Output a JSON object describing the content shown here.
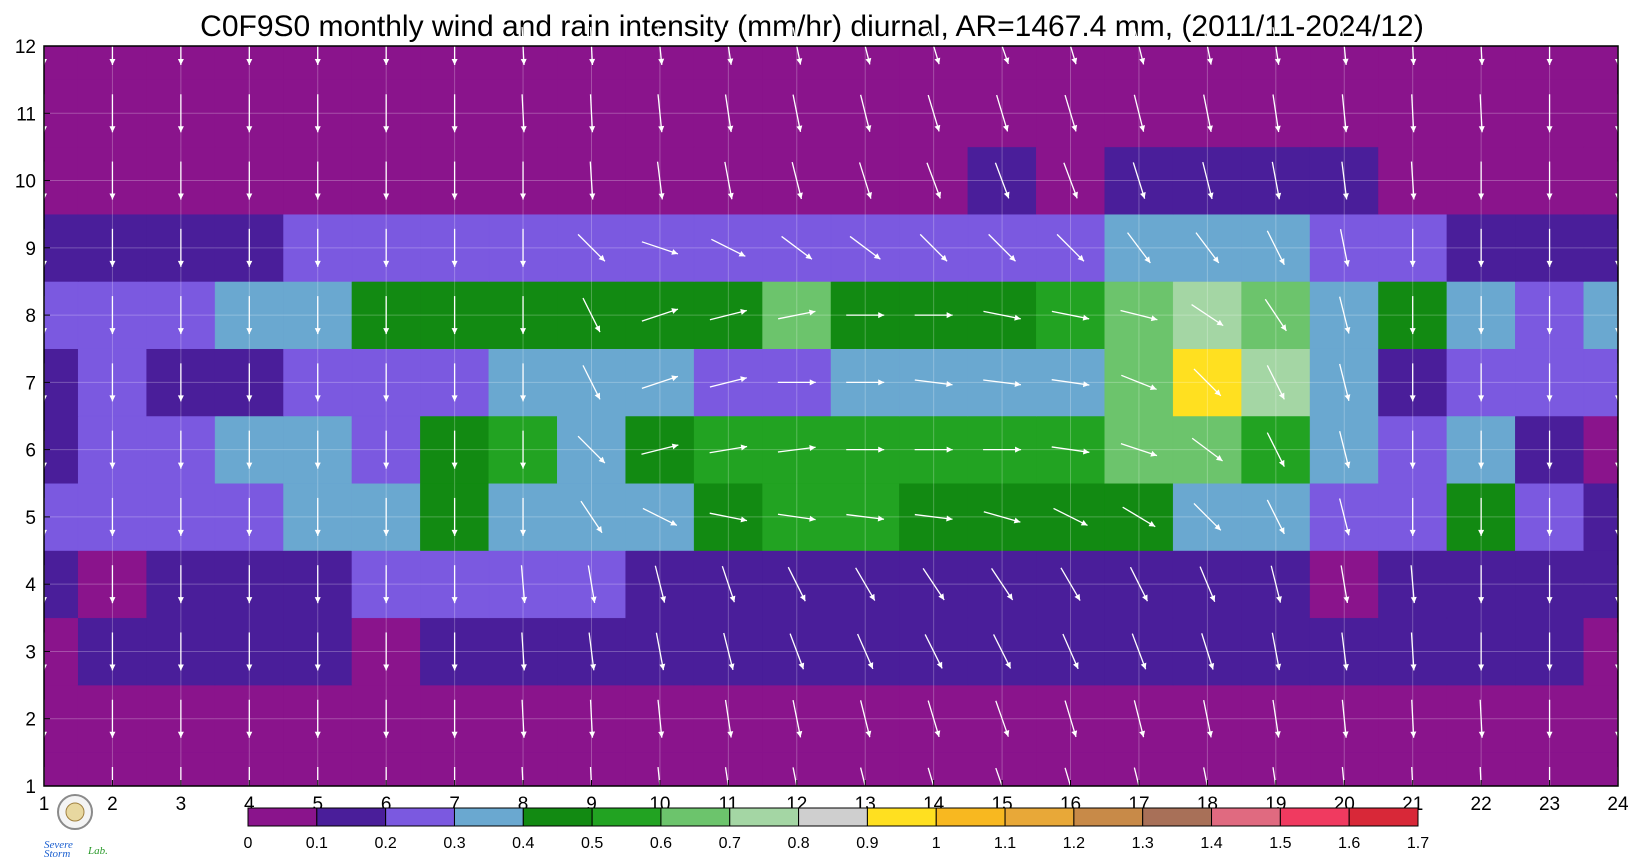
{
  "chart_data": {
    "type": "heatmap",
    "title": "C0F9S0 monthly wind and rain intensity (mm/hr) diurnal, AR=1467.4 mm, (2011/11-2024/12)",
    "xlabel": "",
    "ylabel": "",
    "xlim": [
      1,
      24
    ],
    "ylim": [
      1,
      12
    ],
    "x_ticks": [
      1,
      2,
      3,
      4,
      5,
      6,
      7,
      8,
      9,
      10,
      11,
      12,
      13,
      14,
      15,
      16,
      17,
      18,
      19,
      20,
      21,
      22,
      23,
      24
    ],
    "y_ticks": [
      1,
      2,
      3,
      4,
      5,
      6,
      7,
      8,
      9,
      10,
      11,
      12
    ],
    "grid": true,
    "colorbar": {
      "levels": [
        "0",
        "0.1",
        "0.2",
        "0.3",
        "0.4",
        "0.5",
        "0.6",
        "0.7",
        "0.8",
        "0.9",
        "1",
        "1.1",
        "1.2",
        "1.3",
        "1.4",
        "1.5",
        "1.6",
        "1.7"
      ],
      "colors": [
        "#8a148c",
        "#4a1e9a",
        "#7b59e0",
        "#6aa8d0",
        "#128a12",
        "#22a322",
        "#6cc46c",
        "#a4d6a4",
        "#cfcfcf",
        "#ffe020",
        "#f8b820",
        "#e8a838",
        "#c88a48",
        "#a87058",
        "#e06a80",
        "#f03a60",
        "#d82838"
      ]
    },
    "intensity_rows": [
      {
        "month": 1,
        "values": [
          0,
          0,
          0,
          0,
          0,
          0,
          0,
          0,
          0,
          0,
          0,
          0,
          0,
          0,
          0,
          0,
          0,
          0,
          0,
          0,
          0,
          0,
          0,
          0
        ]
      },
      {
        "month": 2,
        "values": [
          0,
          0,
          0,
          0,
          0,
          0,
          0,
          0,
          0,
          0,
          0,
          0,
          0,
          0,
          0,
          0,
          0,
          0,
          0,
          0,
          0,
          0,
          0,
          0
        ]
      },
      {
        "month": 3,
        "values": [
          0.05,
          0.12,
          0.12,
          0.14,
          0.12,
          0.08,
          0.14,
          0.14,
          0.14,
          0.14,
          0.15,
          0.16,
          0.14,
          0.16,
          0.16,
          0.15,
          0.15,
          0.15,
          0.14,
          0.11,
          0.12,
          0.12,
          0.1,
          0.07
        ]
      },
      {
        "month": 4,
        "values": [
          0.15,
          0.08,
          0.14,
          0.16,
          0.15,
          0.2,
          0.2,
          0.2,
          0.2,
          0.17,
          0.18,
          0.17,
          0.18,
          0.18,
          0.16,
          0.17,
          0.18,
          0.18,
          0.18,
          0.08,
          0.15,
          0.16,
          0.16,
          0.16
        ]
      },
      {
        "month": 5,
        "values": [
          0.2,
          0.25,
          0.2,
          0.25,
          0.3,
          0.35,
          0.45,
          0.35,
          0.3,
          0.3,
          0.45,
          0.55,
          0.55,
          0.4,
          0.4,
          0.45,
          0.42,
          0.35,
          0.3,
          0.2,
          0.2,
          0.45,
          0.2,
          0.12
        ]
      },
      {
        "month": 6,
        "values": [
          0.15,
          0.2,
          0.2,
          0.3,
          0.32,
          0.25,
          0.45,
          0.5,
          0.32,
          0.4,
          0.55,
          0.55,
          0.58,
          0.5,
          0.52,
          0.55,
          0.65,
          0.65,
          0.55,
          0.32,
          0.2,
          0.3,
          0.15,
          0.08
        ]
      },
      {
        "month": 7,
        "values": [
          0.15,
          0.2,
          0.16,
          0.18,
          0.22,
          0.22,
          0.25,
          0.3,
          0.3,
          0.35,
          0.28,
          0.28,
          0.35,
          0.3,
          0.3,
          0.38,
          0.68,
          0.92,
          0.7,
          0.3,
          0.12,
          0.2,
          0.2,
          0.2
        ]
      },
      {
        "month": 8,
        "values": [
          0.2,
          0.2,
          0.25,
          0.3,
          0.35,
          0.48,
          0.48,
          0.48,
          0.45,
          0.45,
          0.48,
          0.62,
          0.42,
          0.45,
          0.42,
          0.5,
          0.6,
          0.7,
          0.65,
          0.35,
          0.45,
          0.3,
          0.2,
          0.3
        ]
      },
      {
        "month": 9,
        "values": [
          0.1,
          0.12,
          0.18,
          0.18,
          0.2,
          0.25,
          0.25,
          0.25,
          0.25,
          0.25,
          0.25,
          0.25,
          0.2,
          0.2,
          0.28,
          0.25,
          0.3,
          0.32,
          0.32,
          0.2,
          0.2,
          0.15,
          0.1,
          0.12
        ]
      },
      {
        "month": 10,
        "values": [
          0,
          0,
          0,
          0,
          0,
          0,
          0,
          0,
          0,
          0,
          0,
          0,
          0,
          0.05,
          0.1,
          0.08,
          0.1,
          0.1,
          0.1,
          0.1,
          0.08,
          0,
          0,
          0
        ]
      },
      {
        "month": 11,
        "values": [
          0,
          0,
          0,
          0,
          0,
          0,
          0,
          0,
          0,
          0,
          0,
          0,
          0,
          0,
          0,
          0,
          0,
          0,
          0,
          0,
          0,
          0,
          0,
          0
        ]
      },
      {
        "month": 12,
        "values": [
          0,
          0,
          0,
          0,
          0,
          0,
          0,
          0,
          0,
          0,
          0,
          0,
          0,
          0,
          0,
          0,
          0,
          0,
          0,
          0,
          0,
          0,
          0,
          0
        ]
      }
    ],
    "wind_vectors_description": "arrows mostly pointing south (downward) with slight easterly tilt; months 5-8 midday-afternoon arrows point east",
    "wind_rows": [
      {
        "month": 1,
        "u": [
          0,
          0,
          0,
          0,
          0,
          0,
          0,
          0.05,
          0.05,
          0.1,
          0.15,
          0.2,
          0.25,
          0.3,
          0.35,
          0.3,
          0.25,
          0.2,
          0.15,
          0.1,
          0.05,
          0.05,
          0,
          0
        ],
        "v": [
          -1,
          -1,
          -1,
          -1,
          -1,
          -1,
          -1,
          -1,
          -1,
          -1,
          -1,
          -1,
          -1,
          -1,
          -1,
          -1,
          -1,
          -1,
          -1,
          -1,
          -1,
          -1,
          -1,
          -1
        ]
      },
      {
        "month": 2,
        "u": [
          0,
          0,
          0,
          0,
          0,
          0,
          0,
          0.05,
          0.05,
          0.1,
          0.15,
          0.2,
          0.25,
          0.3,
          0.35,
          0.3,
          0.25,
          0.2,
          0.15,
          0.1,
          0.05,
          0.05,
          0,
          0
        ],
        "v": [
          -1,
          -1,
          -1,
          -1,
          -1,
          -1,
          -1,
          -1,
          -1,
          -1,
          -1,
          -1,
          -1,
          -1,
          -1,
          -1,
          -1,
          -1,
          -1,
          -1,
          -1,
          -1,
          -1,
          -1
        ]
      },
      {
        "month": 3,
        "u": [
          0,
          0,
          0,
          0,
          0,
          0,
          0,
          0.05,
          0.1,
          0.15,
          0.2,
          0.3,
          0.35,
          0.4,
          0.4,
          0.35,
          0.3,
          0.25,
          0.15,
          0.1,
          0.05,
          0,
          0,
          0
        ],
        "v": [
          -0.8,
          -0.8,
          -0.8,
          -0.8,
          -0.8,
          -0.8,
          -0.8,
          -0.8,
          -0.8,
          -0.8,
          -0.8,
          -0.8,
          -0.8,
          -0.8,
          -0.8,
          -0.8,
          -0.8,
          -0.8,
          -0.8,
          -0.8,
          -0.8,
          -0.8,
          -0.8,
          -0.8
        ]
      },
      {
        "month": 4,
        "u": [
          0,
          0,
          0,
          0,
          0,
          0,
          0,
          0.05,
          0.1,
          0.15,
          0.2,
          0.3,
          0.35,
          0.4,
          0.4,
          0.35,
          0.3,
          0.25,
          0.15,
          0.1,
          0.05,
          0,
          0,
          0
        ],
        "v": [
          -0.6,
          -0.6,
          -0.6,
          -0.6,
          -0.6,
          -0.6,
          -0.6,
          -0.6,
          -0.6,
          -0.6,
          -0.6,
          -0.6,
          -0.6,
          -0.6,
          -0.6,
          -0.6,
          -0.6,
          -0.6,
          -0.6,
          -0.6,
          -0.6,
          -0.6,
          -0.6,
          -0.6
        ]
      },
      {
        "month": 5,
        "u": [
          0,
          0,
          0,
          0,
          0,
          0,
          0,
          0,
          0.2,
          0.4,
          0.5,
          0.7,
          0.8,
          0.8,
          0.7,
          0.6,
          0.5,
          0.4,
          0.2,
          0.1,
          0,
          0,
          0,
          0
        ],
        "v": [
          -0.4,
          -0.4,
          -0.4,
          -0.4,
          -0.4,
          -0.4,
          -0.4,
          -0.4,
          -0.3,
          -0.2,
          -0.1,
          -0.1,
          -0.1,
          -0.1,
          -0.2,
          -0.3,
          -0.3,
          -0.4,
          -0.4,
          -0.4,
          -0.4,
          -0.4,
          -0.4,
          -0.4
        ]
      },
      {
        "month": 6,
        "u": [
          0,
          0,
          0,
          0,
          0,
          0,
          0,
          0,
          0.2,
          0.4,
          0.6,
          0.8,
          0.9,
          0.9,
          0.8,
          0.7,
          0.6,
          0.4,
          0.2,
          0.1,
          0,
          0,
          0,
          0
        ],
        "v": [
          -0.4,
          -0.4,
          -0.4,
          -0.4,
          -0.4,
          -0.4,
          -0.4,
          -0.3,
          -0.2,
          0.1,
          0.1,
          0.1,
          0,
          0,
          0,
          -0.1,
          -0.2,
          -0.3,
          -0.4,
          -0.4,
          -0.4,
          -0.4,
          -0.4,
          -0.4
        ]
      },
      {
        "month": 7,
        "u": [
          0,
          0,
          0,
          0,
          0,
          0,
          0,
          0,
          0.1,
          0.3,
          0.4,
          0.6,
          0.7,
          0.8,
          0.8,
          0.7,
          0.5,
          0.3,
          0.2,
          0.1,
          0,
          0,
          0,
          0
        ],
        "v": [
          -0.4,
          -0.4,
          -0.4,
          -0.4,
          -0.4,
          -0.4,
          -0.4,
          -0.3,
          -0.2,
          0.1,
          0.1,
          0,
          0,
          -0.1,
          -0.1,
          -0.1,
          -0.2,
          -0.3,
          -0.4,
          -0.4,
          -0.4,
          -0.4,
          -0.4,
          -0.4
        ]
      },
      {
        "month": 8,
        "u": [
          0,
          0,
          0,
          0,
          0,
          0,
          0,
          0,
          0.1,
          0.3,
          0.4,
          0.5,
          0.6,
          0.6,
          0.5,
          0.5,
          0.4,
          0.3,
          0.2,
          0.1,
          0,
          0,
          0,
          0
        ],
        "v": [
          -0.4,
          -0.4,
          -0.4,
          -0.4,
          -0.4,
          -0.4,
          -0.4,
          -0.3,
          -0.2,
          0.1,
          0.1,
          0.1,
          0,
          0,
          -0.1,
          -0.1,
          -0.1,
          -0.2,
          -0.3,
          -0.4,
          -0.4,
          -0.4,
          -0.4,
          -0.4
        ]
      },
      {
        "month": 9,
        "u": [
          0,
          0,
          0,
          0,
          0,
          0,
          0,
          0,
          0.2,
          0.3,
          0.4,
          0.4,
          0.4,
          0.4,
          0.4,
          0.4,
          0.3,
          0.3,
          0.2,
          0.1,
          0,
          0,
          0,
          0
        ],
        "v": [
          -0.5,
          -0.5,
          -0.5,
          -0.5,
          -0.5,
          -0.5,
          -0.5,
          -0.5,
          -0.2,
          -0.1,
          -0.2,
          -0.3,
          -0.3,
          -0.4,
          -0.4,
          -0.4,
          -0.4,
          -0.4,
          -0.4,
          -0.5,
          -0.5,
          -0.5,
          -0.5,
          -0.5
        ]
      },
      {
        "month": 10,
        "u": [
          0,
          0,
          0,
          0,
          0,
          0,
          0,
          0,
          0.05,
          0.1,
          0.15,
          0.2,
          0.25,
          0.3,
          0.3,
          0.3,
          0.25,
          0.2,
          0.15,
          0.1,
          0.05,
          0,
          0,
          0
        ],
        "v": [
          -0.8,
          -0.8,
          -0.8,
          -0.8,
          -0.8,
          -0.8,
          -0.8,
          -0.8,
          -0.8,
          -0.8,
          -0.8,
          -0.8,
          -0.8,
          -0.8,
          -0.8,
          -0.8,
          -0.8,
          -0.8,
          -0.8,
          -0.8,
          -0.8,
          -0.8,
          -0.8,
          -0.8
        ]
      },
      {
        "month": 11,
        "u": [
          0,
          0,
          0,
          0,
          0,
          0,
          0,
          0.05,
          0.05,
          0.1,
          0.15,
          0.2,
          0.25,
          0.3,
          0.3,
          0.3,
          0.25,
          0.2,
          0.15,
          0.1,
          0.05,
          0.05,
          0,
          0
        ],
        "v": [
          -1,
          -1,
          -1,
          -1,
          -1,
          -1,
          -1,
          -1,
          -1,
          -1,
          -1,
          -1,
          -1,
          -1,
          -1,
          -1,
          -1,
          -1,
          -1,
          -1,
          -1,
          -1,
          -1,
          -1
        ]
      },
      {
        "month": 12,
        "u": [
          0,
          0,
          0,
          0,
          0,
          0,
          0,
          0.05,
          0.05,
          0.1,
          0.15,
          0.2,
          0.25,
          0.3,
          0.35,
          0.3,
          0.25,
          0.2,
          0.15,
          0.1,
          0.05,
          0.05,
          0,
          0
        ],
        "v": [
          -1,
          -1,
          -1,
          -1,
          -1,
          -1,
          -1,
          -1,
          -1,
          -1,
          -1,
          -1,
          -1,
          -1,
          -1,
          -1,
          -1,
          -1,
          -1,
          -1,
          -1,
          -1,
          -1,
          -1
        ]
      }
    ]
  },
  "logo": {
    "text_severe": "Severe",
    "text_storm": "Storm",
    "text_lab": "Lab."
  }
}
